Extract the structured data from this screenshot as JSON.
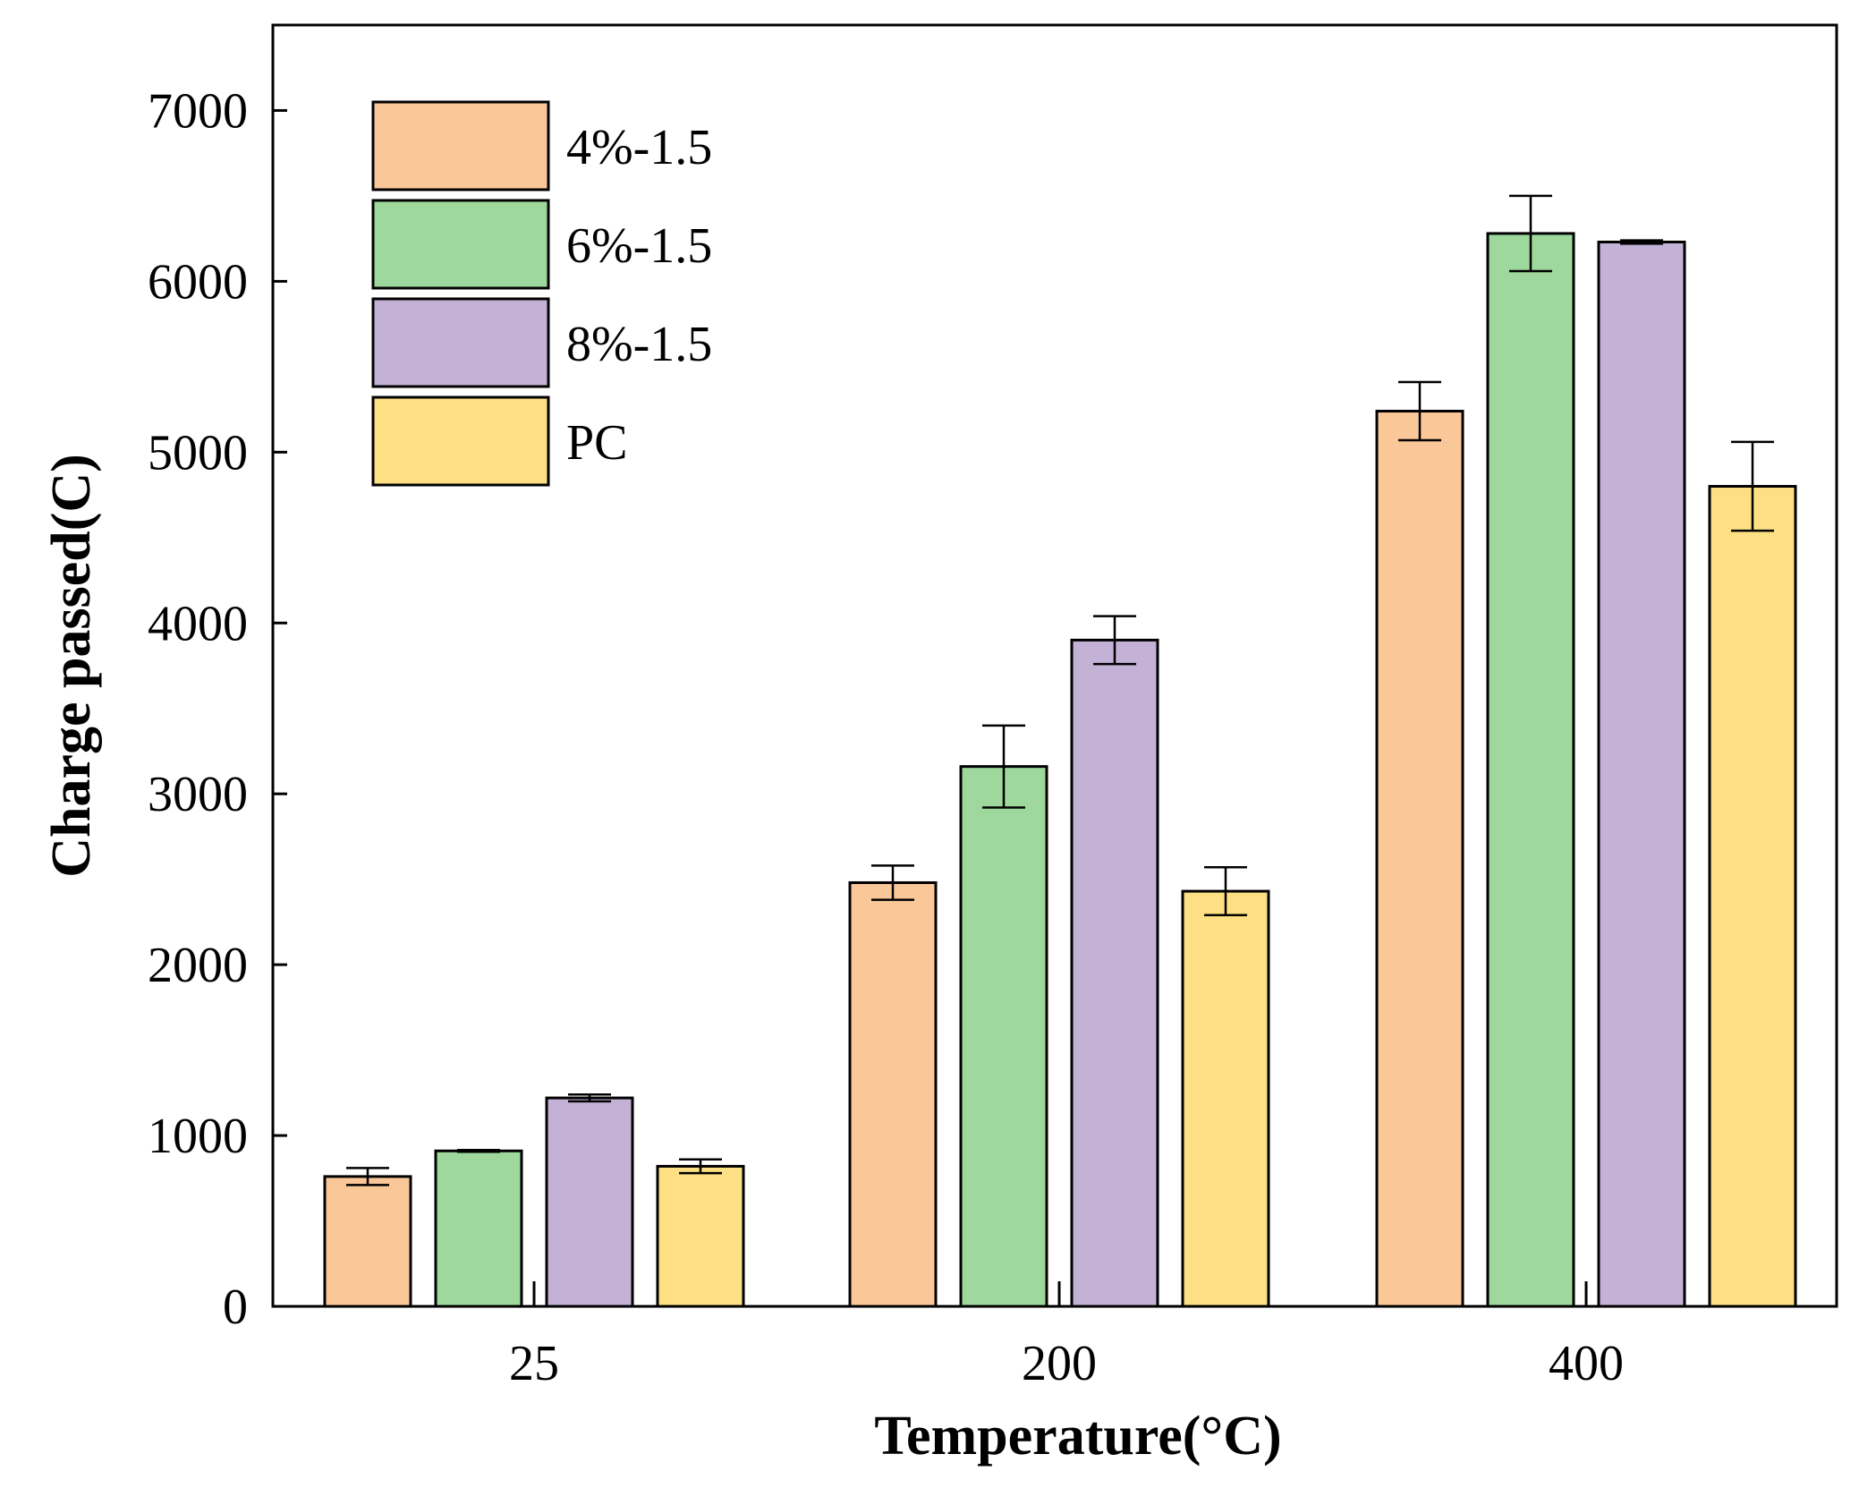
{
  "chart_data": {
    "type": "bar",
    "title": "",
    "xlabel": "Temperature(°C)",
    "ylabel": "Charge passed(C)",
    "ylim": [
      0,
      7500
    ],
    "yticks": [
      0,
      1000,
      2000,
      3000,
      4000,
      5000,
      6000,
      7000
    ],
    "categories": [
      "25",
      "200",
      "400"
    ],
    "series": [
      {
        "name": "4%-1.5",
        "color": "#FAC898",
        "values": [
          760,
          2480,
          5240
        ],
        "errors": [
          50,
          100,
          170
        ]
      },
      {
        "name": "6%-1.5",
        "color": "#9ED89C",
        "values": [
          910,
          3160,
          6280
        ],
        "errors": [
          5,
          240,
          220
        ]
      },
      {
        "name": "8%-1.5",
        "color": "#C3B1D6",
        "values": [
          1220,
          3900,
          6230
        ],
        "errors": [
          20,
          140,
          10
        ]
      },
      {
        "name": "PC",
        "color": "#FDE083",
        "values": [
          820,
          2430,
          4800
        ],
        "errors": [
          40,
          140,
          260
        ]
      }
    ],
    "legend_position": "top-left",
    "grid": false
  }
}
